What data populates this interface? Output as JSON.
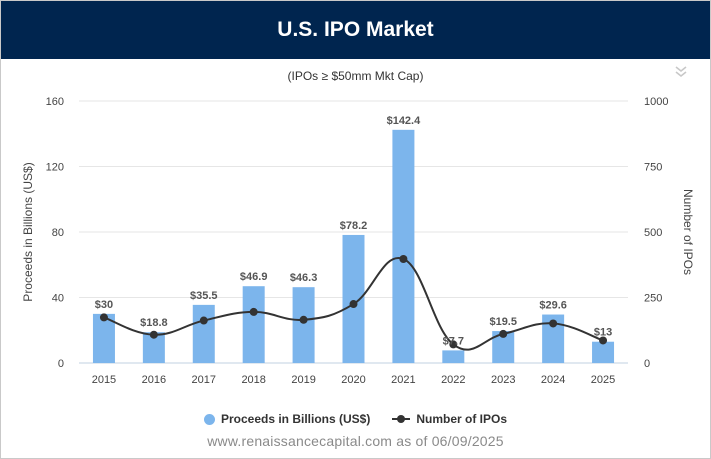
{
  "header": {
    "title": "U.S. IPO Market"
  },
  "chart_data": {
    "type": "bar",
    "title": "U.S. IPO Market",
    "subtitle": "(IPOs ≥ $50mm Mkt Cap)",
    "categories": [
      "2015",
      "2016",
      "2017",
      "2018",
      "2019",
      "2020",
      "2021",
      "2022",
      "2023",
      "2024",
      "2025"
    ],
    "series": [
      {
        "name": "Proceeds in Billions (US$)",
        "type": "bar",
        "axis": "left",
        "color": "#7cb5ec",
        "values": [
          30,
          18.8,
          35.5,
          46.9,
          46.3,
          78.2,
          142.4,
          7.7,
          19.5,
          29.6,
          13
        ],
        "labels": [
          "$30",
          "$18.8",
          "$35.5",
          "$46.9",
          "$46.3",
          "$78.2",
          "$142.4",
          "$7.7",
          "$19.5",
          "$29.6",
          "$13"
        ]
      },
      {
        "name": "Number of IPOs",
        "type": "line",
        "axis": "right",
        "color": "#333333",
        "values": [
          174,
          108,
          162,
          195,
          165,
          225,
          397,
          71,
          111,
          151,
          86
        ]
      }
    ],
    "ylabel": "Proceeds in Billions (US$)",
    "y2label": "Number of IPOs",
    "ylim": [
      0,
      160
    ],
    "y2lim": [
      0,
      1000
    ],
    "yticks": [
      "0",
      "40",
      "80",
      "120",
      "160"
    ],
    "y2ticks": [
      "0",
      "250",
      "500",
      "750",
      "1000"
    ],
    "grid": true,
    "legend_position": "bottom-center"
  },
  "footer": {
    "source": "www.renaissancecapital.com as of 06/09/2025"
  },
  "icons": {
    "menu": "chevron-double-down-icon"
  }
}
